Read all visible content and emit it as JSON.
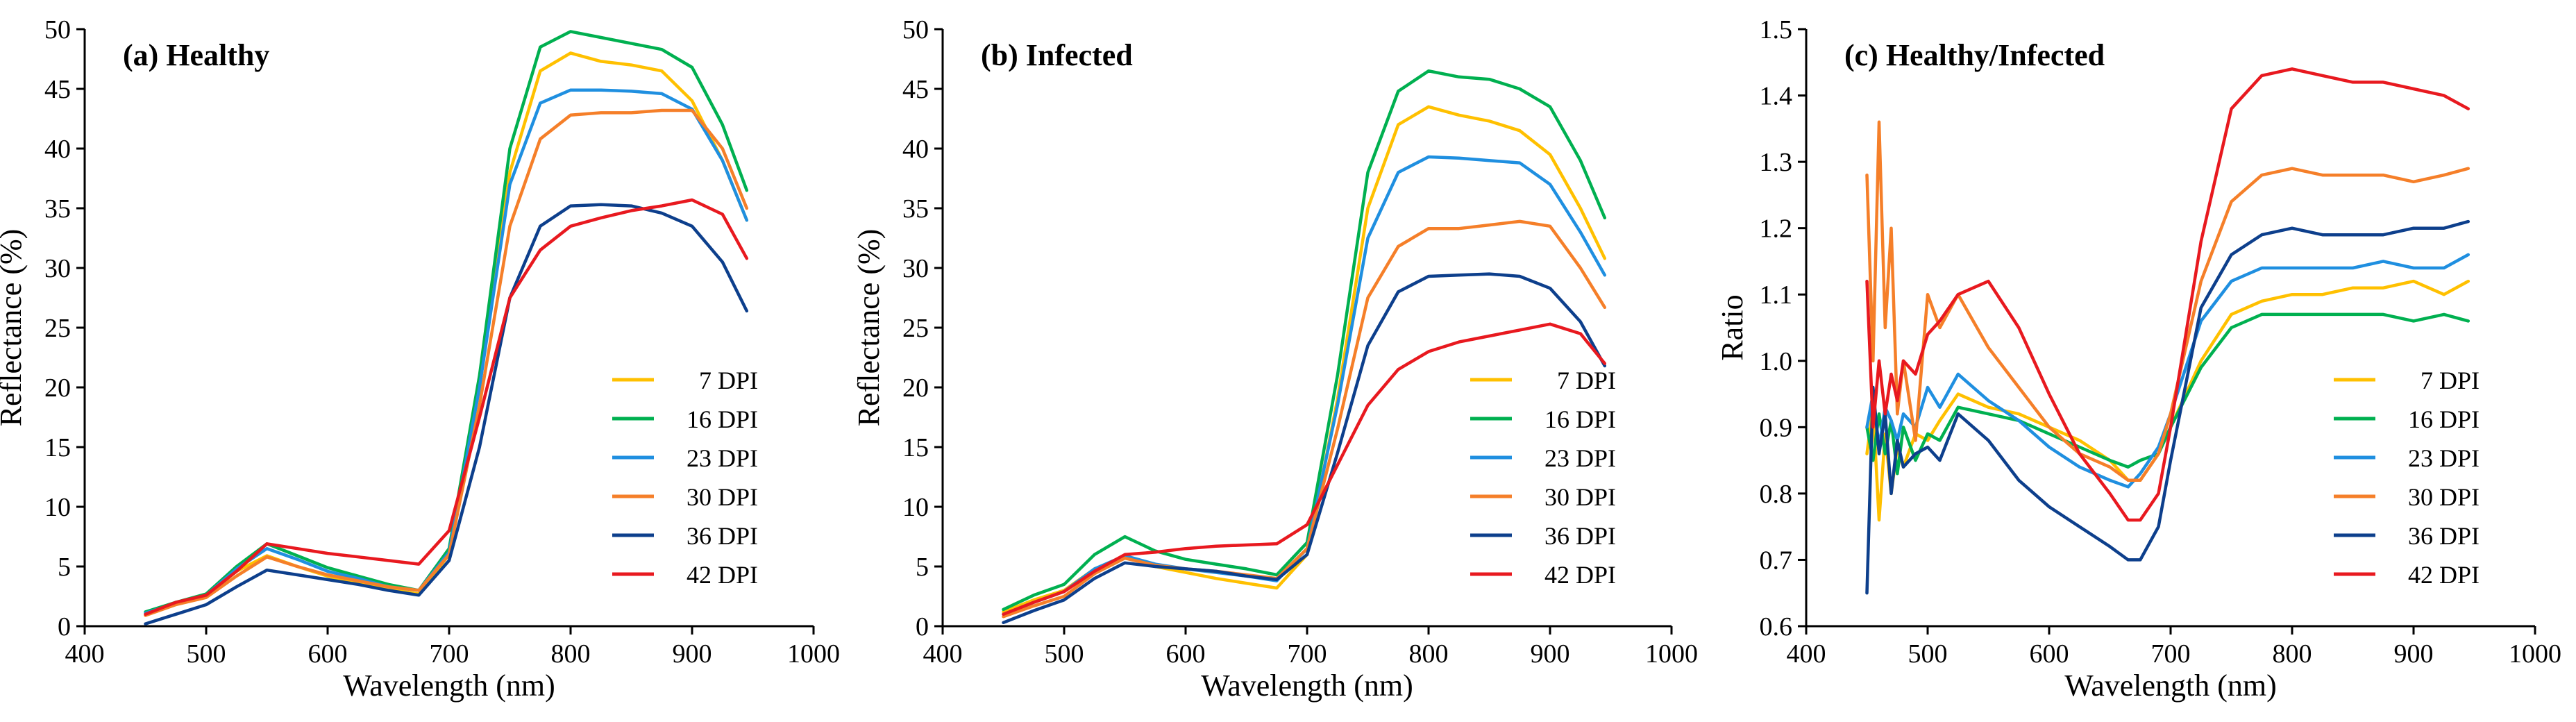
{
  "colors": {
    "7 DPI": "#FFC000",
    "16 DPI": "#00B050",
    "23 DPI": "#1F8FE0",
    "30 DPI": "#F57F29",
    "36 DPI": "#0D3F8C",
    "42 DPI": "#E8191F"
  },
  "chart_data": [
    {
      "type": "line",
      "title": "(a) Healthy",
      "xlabel": "Wavelength (nm)",
      "ylabel": "Reflectance (%)",
      "xlim": [
        400,
        1000
      ],
      "ylim": [
        0,
        50
      ],
      "xticks": [
        400,
        500,
        600,
        700,
        800,
        900,
        1000
      ],
      "yticks": [
        0,
        5,
        10,
        15,
        20,
        25,
        30,
        35,
        40,
        45,
        50
      ],
      "ytick_labels": [
        "0",
        "5",
        "10",
        "15",
        "20",
        "25",
        "30",
        "35",
        "40",
        "45",
        "50"
      ],
      "legend_position": "bottom-right",
      "x": [
        450,
        475,
        500,
        525,
        550,
        575,
        600,
        625,
        650,
        675,
        700,
        725,
        750,
        775,
        800,
        825,
        850,
        875,
        900,
        925,
        945
      ],
      "series": [
        {
          "name": "7 DPI",
          "values": [
            1.0,
            1.9,
            2.5,
            4.6,
            5.9,
            5.0,
            4.2,
            3.6,
            3.1,
            2.7,
            6.0,
            20.0,
            38.0,
            46.5,
            48.0,
            47.3,
            47.0,
            46.5,
            44.0,
            39.0,
            34.0
          ]
        },
        {
          "name": "16 DPI",
          "values": [
            1.2,
            2.0,
            2.7,
            5.0,
            6.9,
            5.9,
            4.9,
            4.2,
            3.5,
            3.0,
            6.5,
            21.0,
            40.0,
            48.5,
            49.8,
            49.3,
            48.8,
            48.3,
            46.8,
            42.0,
            36.5
          ]
        },
        {
          "name": "23 DPI",
          "values": [
            1.1,
            1.9,
            2.6,
            4.8,
            6.5,
            5.6,
            4.6,
            4.0,
            3.3,
            3.0,
            6.2,
            20.0,
            37.0,
            43.8,
            44.9,
            44.9,
            44.8,
            44.6,
            43.3,
            39.0,
            34.0
          ]
        },
        {
          "name": "30 DPI",
          "values": [
            0.9,
            1.8,
            2.4,
            4.2,
            5.8,
            5.0,
            4.3,
            3.8,
            3.3,
            3.0,
            6.0,
            18.5,
            33.5,
            40.8,
            42.8,
            43.0,
            43.0,
            43.2,
            43.2,
            40.0,
            35.0
          ]
        },
        {
          "name": "36 DPI",
          "values": [
            0.2,
            1.0,
            1.8,
            3.3,
            4.7,
            4.3,
            3.9,
            3.5,
            3.0,
            2.6,
            5.5,
            15.0,
            27.5,
            33.5,
            35.2,
            35.3,
            35.2,
            34.6,
            33.5,
            30.5,
            26.4
          ]
        },
        {
          "name": "42 DPI",
          "values": [
            1.0,
            2.0,
            2.6,
            4.6,
            6.9,
            6.5,
            6.1,
            5.8,
            5.5,
            5.2,
            8.0,
            17.5,
            27.5,
            31.5,
            33.5,
            34.2,
            34.8,
            35.2,
            35.7,
            34.5,
            30.8
          ]
        }
      ]
    },
    {
      "type": "line",
      "title": "(b) Infected",
      "xlabel": "Wavelength (nm)",
      "ylabel": "Reflectance (%)",
      "xlim": [
        400,
        1000
      ],
      "ylim": [
        0,
        50
      ],
      "xticks": [
        400,
        500,
        600,
        700,
        800,
        900,
        1000
      ],
      "yticks": [
        0,
        5,
        10,
        15,
        20,
        25,
        30,
        35,
        40,
        45,
        50
      ],
      "ytick_labels": [
        "0",
        "5",
        "10",
        "15",
        "20",
        "25",
        "30",
        "35",
        "40",
        "45",
        "50"
      ],
      "legend_position": "bottom-right",
      "x": [
        450,
        475,
        500,
        525,
        550,
        575,
        600,
        625,
        650,
        675,
        700,
        725,
        750,
        775,
        800,
        825,
        850,
        875,
        900,
        925,
        945
      ],
      "series": [
        {
          "name": "7 DPI",
          "values": [
            1.2,
            2.2,
            3.0,
            4.8,
            5.8,
            5.0,
            4.5,
            4.0,
            3.6,
            3.2,
            6.0,
            19.0,
            35.0,
            42.0,
            43.5,
            42.8,
            42.3,
            41.5,
            39.5,
            35.0,
            30.8
          ]
        },
        {
          "name": "16 DPI",
          "values": [
            1.4,
            2.6,
            3.5,
            6.0,
            7.5,
            6.3,
            5.6,
            5.2,
            4.8,
            4.3,
            7.0,
            21.0,
            38.0,
            44.8,
            46.5,
            46.0,
            45.8,
            45.0,
            43.5,
            39.0,
            34.2
          ]
        },
        {
          "name": "23 DPI",
          "values": [
            1.0,
            2.0,
            2.9,
            4.8,
            5.9,
            5.2,
            4.8,
            4.5,
            4.2,
            3.8,
            6.5,
            18.5,
            32.5,
            38.0,
            39.3,
            39.2,
            39.0,
            38.8,
            37.0,
            33.0,
            29.4
          ]
        },
        {
          "name": "30 DPI",
          "values": [
            0.8,
            1.7,
            2.5,
            4.4,
            5.7,
            5.1,
            4.8,
            4.6,
            4.3,
            4.0,
            6.5,
            16.5,
            27.5,
            31.8,
            33.3,
            33.3,
            33.6,
            33.9,
            33.5,
            30.0,
            26.7
          ]
        },
        {
          "name": "36 DPI",
          "values": [
            0.3,
            1.3,
            2.2,
            4.0,
            5.3,
            5.0,
            4.8,
            4.6,
            4.2,
            3.9,
            6.0,
            14.5,
            23.5,
            28.0,
            29.3,
            29.4,
            29.5,
            29.3,
            28.3,
            25.5,
            21.8
          ]
        },
        {
          "name": "42 DPI",
          "values": [
            1.0,
            2.0,
            2.9,
            4.6,
            6.0,
            6.2,
            6.5,
            6.7,
            6.8,
            6.9,
            8.5,
            13.5,
            18.5,
            21.5,
            23.0,
            23.8,
            24.3,
            24.8,
            25.3,
            24.5,
            22.0
          ]
        }
      ]
    },
    {
      "type": "line",
      "title": "(c) Healthy/Infected",
      "xlabel": "Wavelength (nm)",
      "ylabel": "Ratio",
      "xlim": [
        400,
        1000
      ],
      "ylim": [
        0.6,
        1.5
      ],
      "xticks": [
        400,
        500,
        600,
        700,
        800,
        900,
        1000
      ],
      "yticks": [
        0.6,
        0.7,
        0.8,
        0.9,
        1.0,
        1.1,
        1.2,
        1.3,
        1.4,
        1.5
      ],
      "ytick_labels": [
        "0.6",
        "0.7",
        "0.8",
        "0.9",
        "1.0",
        "1.1",
        "1.2",
        "1.3",
        "1.4",
        "1.5"
      ],
      "legend_position": "bottom-right",
      "x": [
        450,
        455,
        460,
        465,
        470,
        475,
        480,
        490,
        500,
        510,
        525,
        550,
        575,
        600,
        625,
        650,
        665,
        675,
        690,
        700,
        725,
        750,
        775,
        800,
        825,
        850,
        875,
        900,
        925,
        945
      ],
      "series": [
        {
          "name": "7 DPI",
          "values": [
            0.86,
            0.93,
            0.76,
            0.89,
            0.8,
            0.87,
            0.84,
            0.89,
            0.88,
            0.91,
            0.95,
            0.93,
            0.92,
            0.9,
            0.88,
            0.85,
            0.82,
            0.82,
            0.86,
            0.9,
            1.0,
            1.07,
            1.09,
            1.1,
            1.1,
            1.11,
            1.11,
            1.12,
            1.1,
            1.12
          ]
        },
        {
          "name": "16 DPI",
          "values": [
            0.9,
            0.85,
            0.92,
            0.86,
            0.91,
            0.83,
            0.9,
            0.85,
            0.89,
            0.88,
            0.93,
            0.92,
            0.91,
            0.89,
            0.87,
            0.85,
            0.84,
            0.85,
            0.86,
            0.9,
            0.99,
            1.05,
            1.07,
            1.07,
            1.07,
            1.07,
            1.07,
            1.06,
            1.07,
            1.06
          ]
        },
        {
          "name": "23 DPI",
          "values": [
            0.9,
            0.95,
            0.87,
            0.93,
            0.91,
            0.88,
            0.92,
            0.9,
            0.96,
            0.93,
            0.98,
            0.94,
            0.91,
            0.87,
            0.84,
            0.82,
            0.81,
            0.83,
            0.87,
            0.92,
            1.06,
            1.12,
            1.14,
            1.14,
            1.14,
            1.14,
            1.15,
            1.14,
            1.14,
            1.16
          ]
        },
        {
          "name": "30 DPI",
          "values": [
            1.28,
            1.0,
            1.36,
            1.05,
            1.2,
            0.92,
            1.0,
            0.88,
            1.1,
            1.05,
            1.1,
            1.02,
            0.96,
            0.9,
            0.86,
            0.84,
            0.82,
            0.82,
            0.86,
            0.92,
            1.12,
            1.24,
            1.28,
            1.29,
            1.28,
            1.28,
            1.28,
            1.27,
            1.28,
            1.29
          ]
        },
        {
          "name": "36 DPI",
          "values": [
            0.65,
            0.96,
            0.86,
            0.92,
            0.8,
            0.88,
            0.84,
            0.86,
            0.87,
            0.85,
            0.92,
            0.88,
            0.82,
            0.78,
            0.75,
            0.72,
            0.7,
            0.7,
            0.75,
            0.85,
            1.08,
            1.16,
            1.19,
            1.2,
            1.19,
            1.19,
            1.19,
            1.2,
            1.2,
            1.21
          ]
        },
        {
          "name": "42 DPI",
          "values": [
            1.12,
            0.9,
            1.0,
            0.92,
            0.98,
            0.94,
            1.0,
            0.98,
            1.04,
            1.06,
            1.1,
            1.12,
            1.05,
            0.95,
            0.86,
            0.8,
            0.76,
            0.76,
            0.8,
            0.9,
            1.18,
            1.38,
            1.43,
            1.44,
            1.43,
            1.42,
            1.42,
            1.41,
            1.4,
            1.38
          ]
        }
      ]
    }
  ]
}
